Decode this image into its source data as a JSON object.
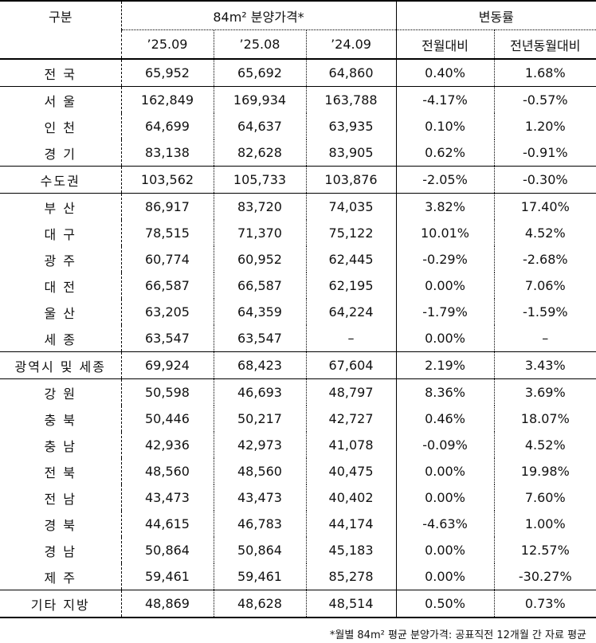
{
  "headers": {
    "category": "구분",
    "price_group": "84m² 분양가격*",
    "change_group": "변동률",
    "periods": [
      "’25.09",
      "’25.08",
      "’24.09"
    ],
    "changes": [
      "전월대비",
      "전년동월대비"
    ]
  },
  "rows": [
    {
      "name": "전 국",
      "v1": "65,952",
      "v2": "65,692",
      "v3": "64,860",
      "mom": "0.40%",
      "yoy": "1.68%"
    },
    {
      "name": "서 울",
      "v1": "162,849",
      "v2": "169,934",
      "v3": "163,788",
      "mom": "-4.17%",
      "yoy": "-0.57%"
    },
    {
      "name": "인 천",
      "v1": "64,699",
      "v2": "64,637",
      "v3": "63,935",
      "mom": "0.10%",
      "yoy": "1.20%"
    },
    {
      "name": "경 기",
      "v1": "83,138",
      "v2": "82,628",
      "v3": "83,905",
      "mom": "0.62%",
      "yoy": "-0.91%"
    },
    {
      "name": "수도권",
      "v1": "103,562",
      "v2": "105,733",
      "v3": "103,876",
      "mom": "-2.05%",
      "yoy": "-0.30%"
    },
    {
      "name": "부 산",
      "v1": "86,917",
      "v2": "83,720",
      "v3": "74,035",
      "mom": "3.82%",
      "yoy": "17.40%"
    },
    {
      "name": "대 구",
      "v1": "78,515",
      "v2": "71,370",
      "v3": "75,122",
      "mom": "10.01%",
      "yoy": "4.52%"
    },
    {
      "name": "광 주",
      "v1": "60,774",
      "v2": "60,952",
      "v3": "62,445",
      "mom": "-0.29%",
      "yoy": "-2.68%"
    },
    {
      "name": "대 전",
      "v1": "66,587",
      "v2": "66,587",
      "v3": "62,195",
      "mom": "0.00%",
      "yoy": "7.06%"
    },
    {
      "name": "울 산",
      "v1": "63,205",
      "v2": "64,359",
      "v3": "64,224",
      "mom": "-1.79%",
      "yoy": "-1.59%"
    },
    {
      "name": "세 종",
      "v1": "63,547",
      "v2": "63,547",
      "v3": "–",
      "mom": "0.00%",
      "yoy": "–"
    },
    {
      "name": "광역시 및 세종",
      "v1": "69,924",
      "v2": "68,423",
      "v3": "67,604",
      "mom": "2.19%",
      "yoy": "3.43%"
    },
    {
      "name": "강 원",
      "v1": "50,598",
      "v2": "46,693",
      "v3": "48,797",
      "mom": "8.36%",
      "yoy": "3.69%"
    },
    {
      "name": "충 북",
      "v1": "50,446",
      "v2": "50,217",
      "v3": "42,727",
      "mom": "0.46%",
      "yoy": "18.07%"
    },
    {
      "name": "충 남",
      "v1": "42,936",
      "v2": "42,973",
      "v3": "41,078",
      "mom": "-0.09%",
      "yoy": "4.52%"
    },
    {
      "name": "전 북",
      "v1": "48,560",
      "v2": "48,560",
      "v3": "40,475",
      "mom": "0.00%",
      "yoy": "19.98%"
    },
    {
      "name": "전 남",
      "v1": "43,473",
      "v2": "43,473",
      "v3": "40,402",
      "mom": "0.00%",
      "yoy": "7.60%"
    },
    {
      "name": "경 북",
      "v1": "44,615",
      "v2": "46,783",
      "v3": "44,174",
      "mom": "-4.63%",
      "yoy": "1.00%"
    },
    {
      "name": "경 남",
      "v1": "50,864",
      "v2": "50,864",
      "v3": "45,183",
      "mom": "0.00%",
      "yoy": "12.57%"
    },
    {
      "name": "제 주",
      "v1": "59,461",
      "v2": "59,461",
      "v3": "85,278",
      "mom": "0.00%",
      "yoy": "-30.27%"
    },
    {
      "name": "기타 지방",
      "v1": "48,869",
      "v2": "48,628",
      "v3": "48,514",
      "mom": "0.50%",
      "yoy": "0.73%"
    }
  ],
  "footnote": "*월별 84m² 평균 분양가격: 공표직전 12개월 간 자료 평균"
}
